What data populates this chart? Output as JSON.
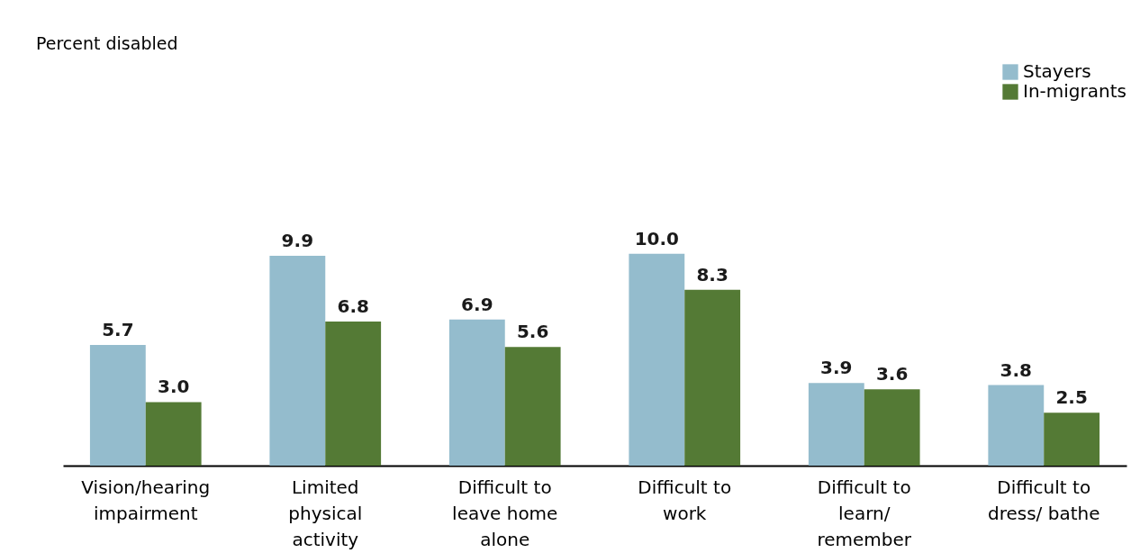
{
  "chart_data": {
    "type": "bar",
    "annotations": [
      "Percent disabled"
    ],
    "categories": [
      "Vision/hearing impairment",
      "Limited physical activity",
      "Difficult to leave home alone",
      "Difficult to work",
      "Difficult to learn/ remember",
      "Difficult to dress/ bathe"
    ],
    "series": [
      {
        "name": "Stayers",
        "color": "#94bccd",
        "values": [
          5.7,
          9.9,
          6.9,
          10.0,
          3.9,
          3.8
        ],
        "value_labels": [
          "5.7",
          "9.9",
          "6.9",
          "10.0",
          "3.9",
          "3.8"
        ]
      },
      {
        "name": "In-migrants",
        "color": "#547a35",
        "values": [
          3.0,
          6.8,
          5.6,
          8.3,
          3.6,
          2.5
        ],
        "value_labels": [
          "3.0",
          "6.8",
          "5.6",
          "8.3",
          "3.6",
          "2.5"
        ]
      }
    ],
    "legend": "top right",
    "grid": false
  }
}
